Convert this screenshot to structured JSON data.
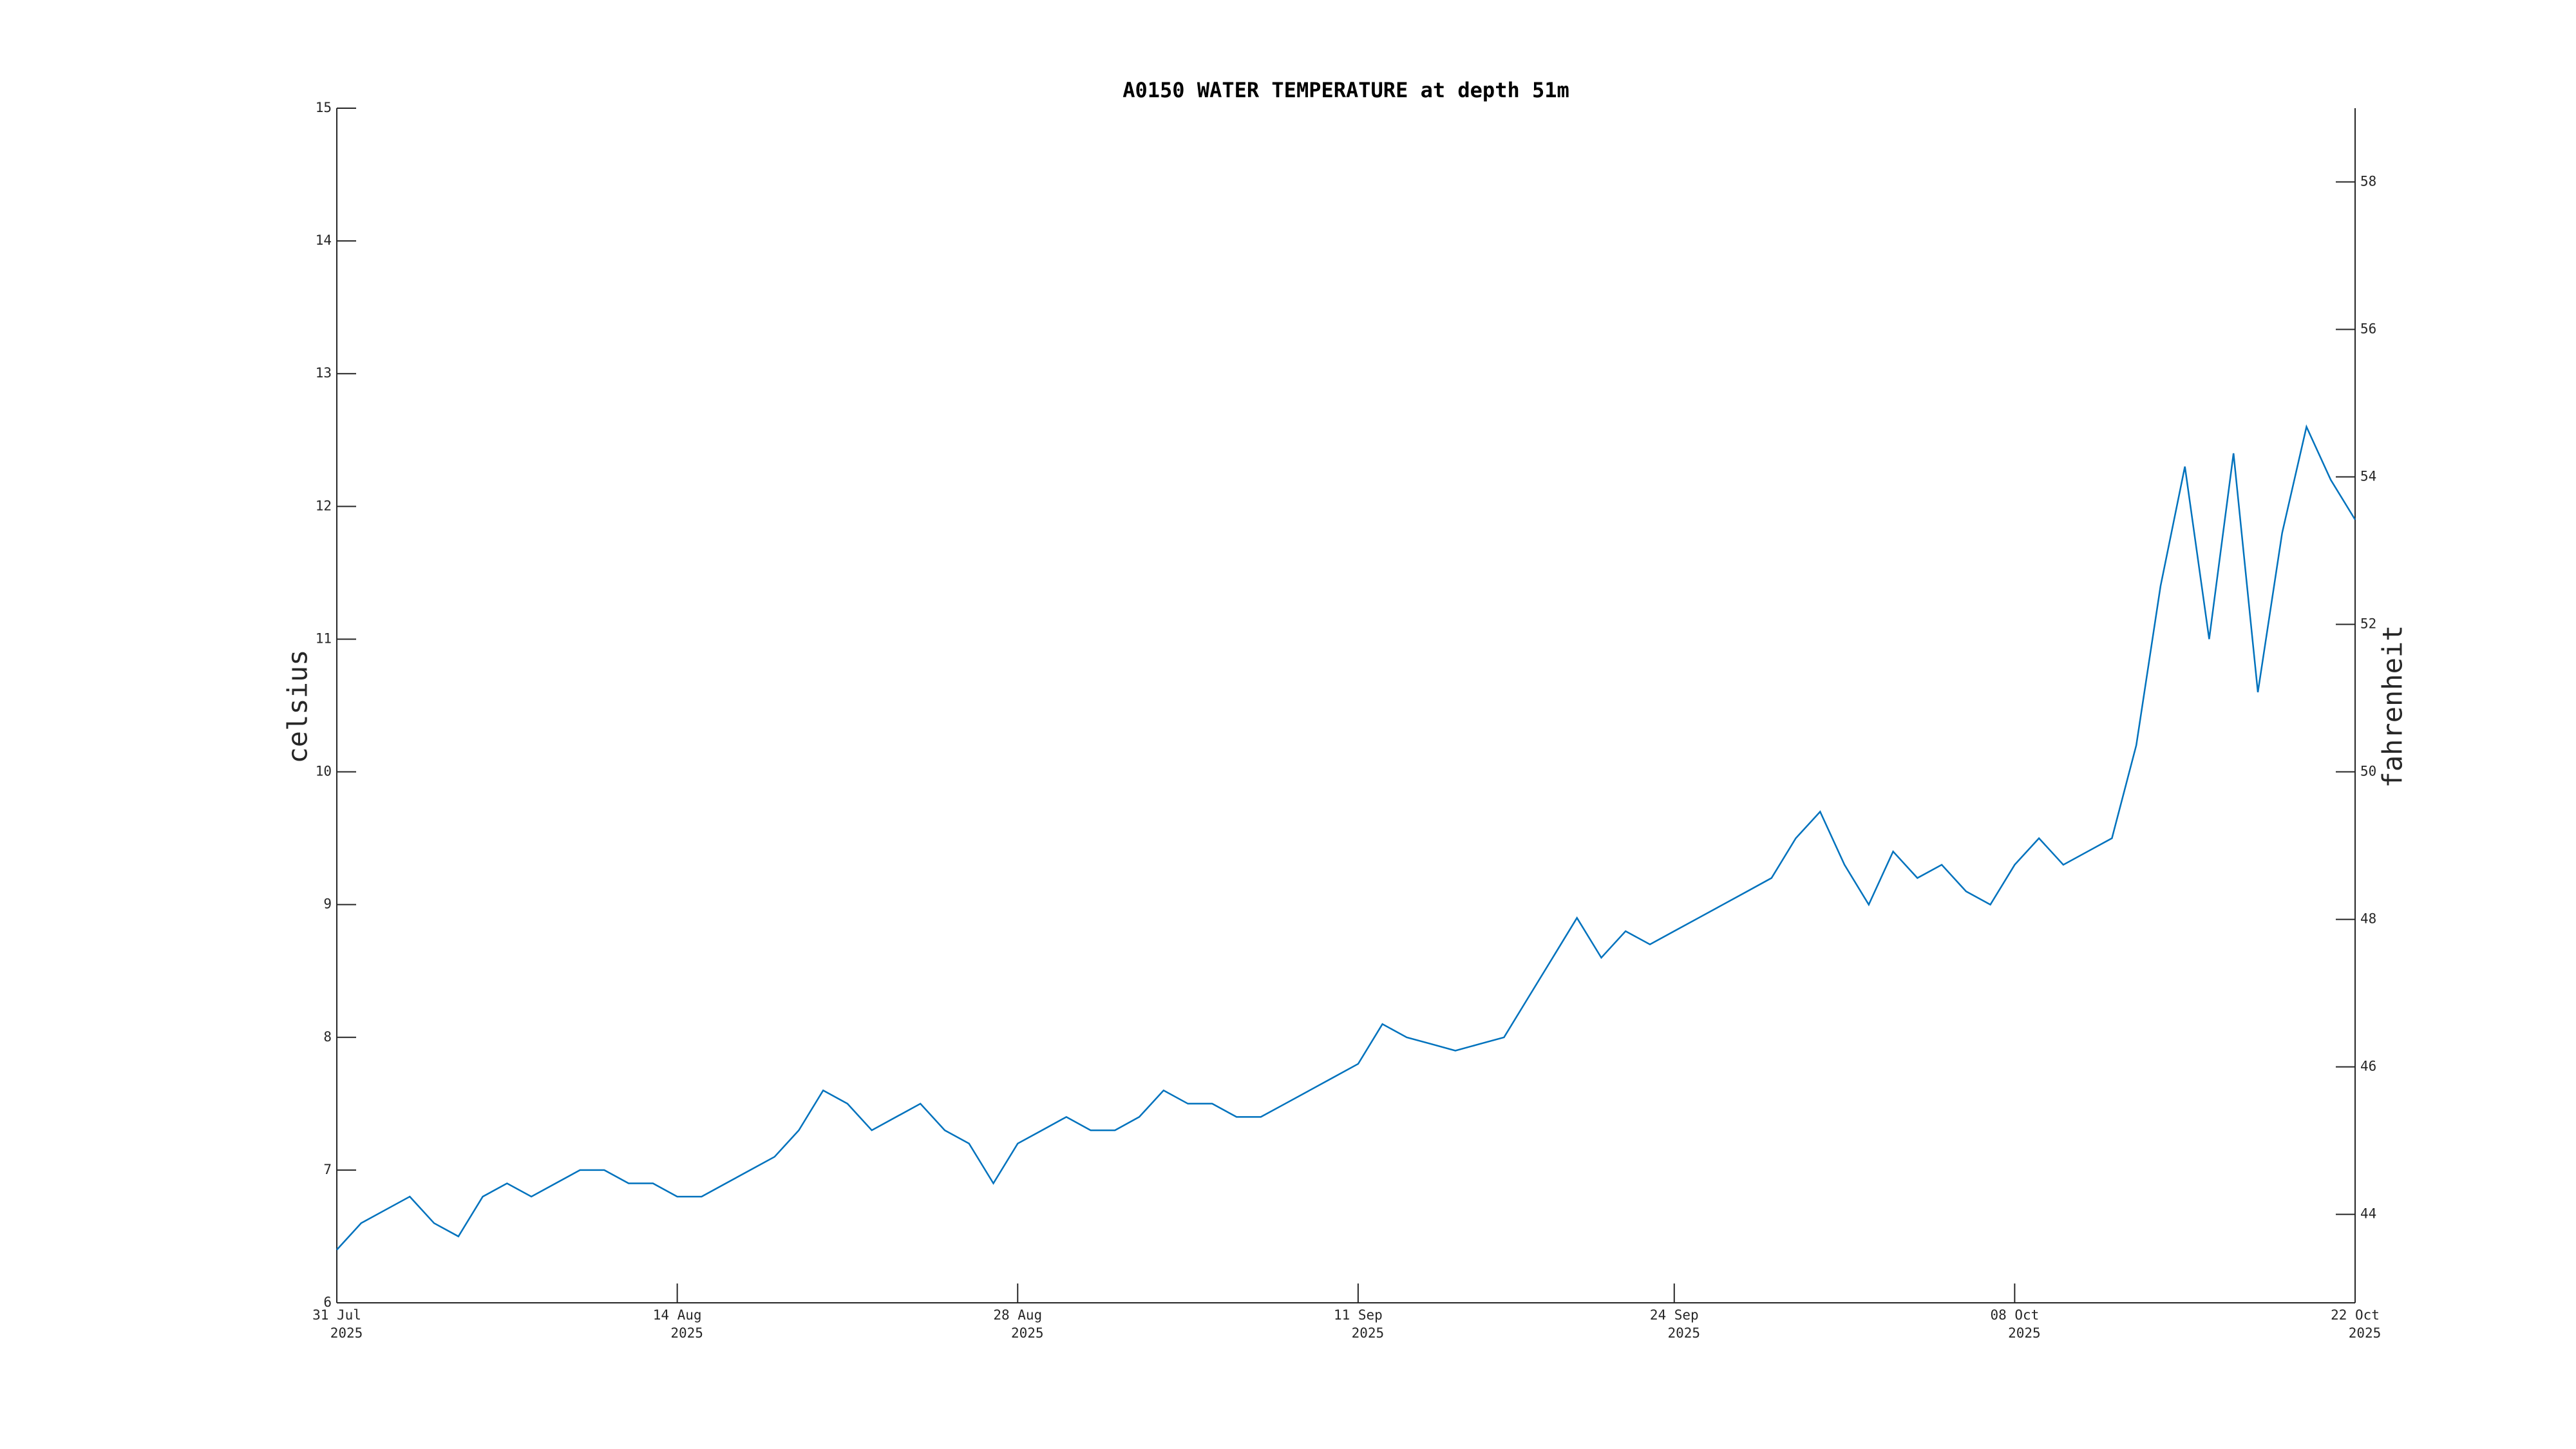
{
  "chart_data": {
    "type": "line",
    "title": "A0150 WATER TEMPERATURE at depth 51m",
    "y_label": "celsius",
    "y2_label": "fahrenheit",
    "x": [
      "2025-07-31",
      "2025-08-01",
      "2025-08-02",
      "2025-08-03",
      "2025-08-04",
      "2025-08-05",
      "2025-08-06",
      "2025-08-07",
      "2025-08-08",
      "2025-08-09",
      "2025-08-10",
      "2025-08-11",
      "2025-08-12",
      "2025-08-13",
      "2025-08-14",
      "2025-08-15",
      "2025-08-16",
      "2025-08-17",
      "2025-08-18",
      "2025-08-19",
      "2025-08-20",
      "2025-08-21",
      "2025-08-22",
      "2025-08-23",
      "2025-08-24",
      "2025-08-25",
      "2025-08-26",
      "2025-08-27",
      "2025-08-28",
      "2025-08-29",
      "2025-08-30",
      "2025-08-31",
      "2025-09-01",
      "2025-09-02",
      "2025-09-03",
      "2025-09-04",
      "2025-09-05",
      "2025-09-06",
      "2025-09-07",
      "2025-09-08",
      "2025-09-09",
      "2025-09-10",
      "2025-09-11",
      "2025-09-12",
      "2025-09-13",
      "2025-09-14",
      "2025-09-15",
      "2025-09-16",
      "2025-09-17",
      "2025-09-18",
      "2025-09-19",
      "2025-09-20",
      "2025-09-21",
      "2025-09-22",
      "2025-09-23",
      "2025-09-24",
      "2025-09-25",
      "2025-09-26",
      "2025-09-27",
      "2025-09-28",
      "2025-09-29",
      "2025-09-30",
      "2025-10-01",
      "2025-10-02",
      "2025-10-03",
      "2025-10-04",
      "2025-10-05",
      "2025-10-06",
      "2025-10-07",
      "2025-10-08",
      "2025-10-09",
      "2025-10-10",
      "2025-10-11",
      "2025-10-12",
      "2025-10-13",
      "2025-10-14",
      "2025-10-15",
      "2025-10-16",
      "2025-10-17",
      "2025-10-18",
      "2025-10-19",
      "2025-10-20",
      "2025-10-21",
      "2025-10-22"
    ],
    "series": [
      {
        "color": "#0072bd",
        "values": [
          6.4,
          6.6,
          6.7,
          6.8,
          6.6,
          6.5,
          6.8,
          6.9,
          6.8,
          6.9,
          7.0,
          7.0,
          6.9,
          6.9,
          6.8,
          6.8,
          6.9,
          7.0,
          7.1,
          7.3,
          7.6,
          7.5,
          7.3,
          7.4,
          7.5,
          7.3,
          7.2,
          6.9,
          7.2,
          7.3,
          7.4,
          7.3,
          7.3,
          7.4,
          7.6,
          7.5,
          7.5,
          7.4,
          7.4,
          7.5,
          7.6,
          7.7,
          7.8,
          8.1,
          8.0,
          7.95,
          7.9,
          7.95,
          8.0,
          8.3,
          8.6,
          8.9,
          8.6,
          8.8,
          8.7,
          8.8,
          8.9,
          9.0,
          9.1,
          9.2,
          9.5,
          9.7,
          9.3,
          9.0,
          9.4,
          9.2,
          9.3,
          9.1,
          9.0,
          9.3,
          9.5,
          9.3,
          9.4,
          9.5,
          10.2,
          11.4,
          12.3,
          11.0,
          12.4,
          10.6,
          11.8,
          12.6,
          12.2,
          11.9
        ]
      }
    ],
    "xlim": [
      "2025-07-31",
      "2025-10-22"
    ],
    "xticks": [
      {
        "value": "2025-07-31",
        "label": [
          "31 Jul",
          "2025"
        ]
      },
      {
        "value": "2025-08-14",
        "label": [
          "14 Aug",
          "2025"
        ]
      },
      {
        "value": "2025-08-28",
        "label": [
          "28 Aug",
          "2025"
        ]
      },
      {
        "value": "2025-09-11",
        "label": [
          "11 Sep",
          "2025"
        ]
      },
      {
        "value": "2025-09-24",
        "label": [
          "24 Sep",
          "2025"
        ]
      },
      {
        "value": "2025-10-08",
        "label": [
          "08 Oct",
          "2025"
        ]
      },
      {
        "value": "2025-10-22",
        "label": [
          "22 Oct",
          "2025"
        ]
      }
    ],
    "ylim": [
      6,
      15
    ],
    "yticks": [
      6,
      7,
      8,
      9,
      10,
      11,
      12,
      13,
      14,
      15
    ],
    "y2lim": [
      42.8,
      59
    ],
    "y2ticks": [
      44,
      46,
      48,
      50,
      52,
      54,
      56,
      58
    ]
  }
}
